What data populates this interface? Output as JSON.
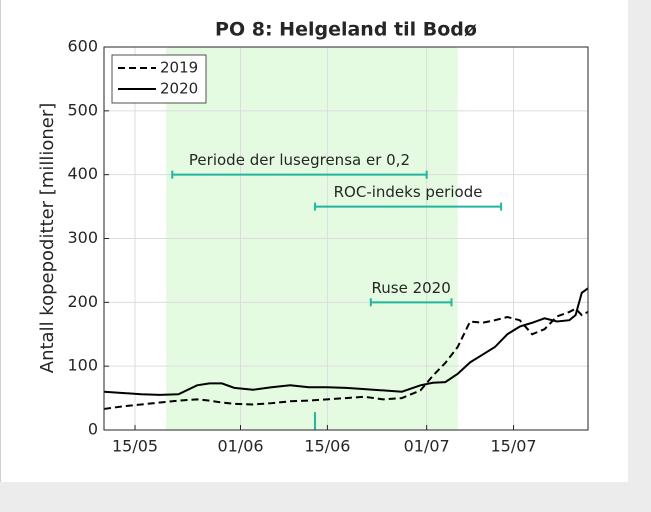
{
  "chart_data": {
    "type": "line",
    "title": "PO 8: Helgeland til Bodø",
    "y_label": "Antall kopepoditter [millioner]",
    "x": [
      "10/05",
      "13/05",
      "16/05",
      "19/05",
      "22/05",
      "25/05",
      "27/05",
      "29/05",
      "31/05",
      "03/06",
      "06/06",
      "09/06",
      "12/06",
      "15/06",
      "18/06",
      "21/06",
      "24/06",
      "27/06",
      "30/06",
      "02/07",
      "04/07",
      "06/07",
      "08/07",
      "10/07",
      "12/07",
      "14/07",
      "16/07",
      "18/07",
      "20/07",
      "22/07",
      "24/07",
      "25/07",
      "26/07",
      "27/07"
    ],
    "series": [
      {
        "name": "2019",
        "color": "#000000",
        "dash": true,
        "values": [
          33,
          37,
          40,
          43,
          46,
          48,
          46,
          43,
          41,
          40,
          42,
          45,
          46,
          48,
          50,
          52,
          48,
          50,
          62,
          85,
          105,
          130,
          170,
          168,
          172,
          177,
          172,
          150,
          158,
          178,
          185,
          190,
          180,
          185
        ]
      },
      {
        "name": "2020",
        "color": "#000000",
        "dash": false,
        "values": [
          60,
          58,
          56,
          55,
          56,
          70,
          73,
          73,
          66,
          63,
          67,
          70,
          67,
          67,
          66,
          64,
          62,
          60,
          70,
          74,
          75,
          88,
          106,
          118,
          130,
          150,
          162,
          168,
          175,
          170,
          172,
          180,
          215,
          222
        ]
      }
    ],
    "xlim": [
      "10/05",
      "27/07"
    ],
    "xticks": [
      "15/05",
      "01/06",
      "15/06",
      "01/07",
      "15/07"
    ],
    "ylim": [
      0,
      600
    ],
    "yticks": [
      0,
      100,
      200,
      300,
      400,
      500,
      600
    ],
    "grid": true,
    "legend": "upper left",
    "shaded": {
      "start": "20/05",
      "end": "06/07",
      "color": "#e4fbe1"
    },
    "intervals": [
      {
        "label": "Periode der lusegrensa er 0,2",
        "start": "21/05",
        "end": "01/07",
        "y": 400,
        "color": "#22b5a0"
      },
      {
        "label": "ROC-indeks periode",
        "start": "13/06",
        "end": "13/07",
        "y": 350,
        "color": "#22b5a0"
      },
      {
        "label": "Ruse 2020",
        "start": "22/06",
        "end": "05/07",
        "y": 200,
        "color": "#22b5a0"
      }
    ],
    "marker": {
      "x": "13/06",
      "y": [
        0,
        28
      ],
      "color": "#22b5a0"
    }
  }
}
